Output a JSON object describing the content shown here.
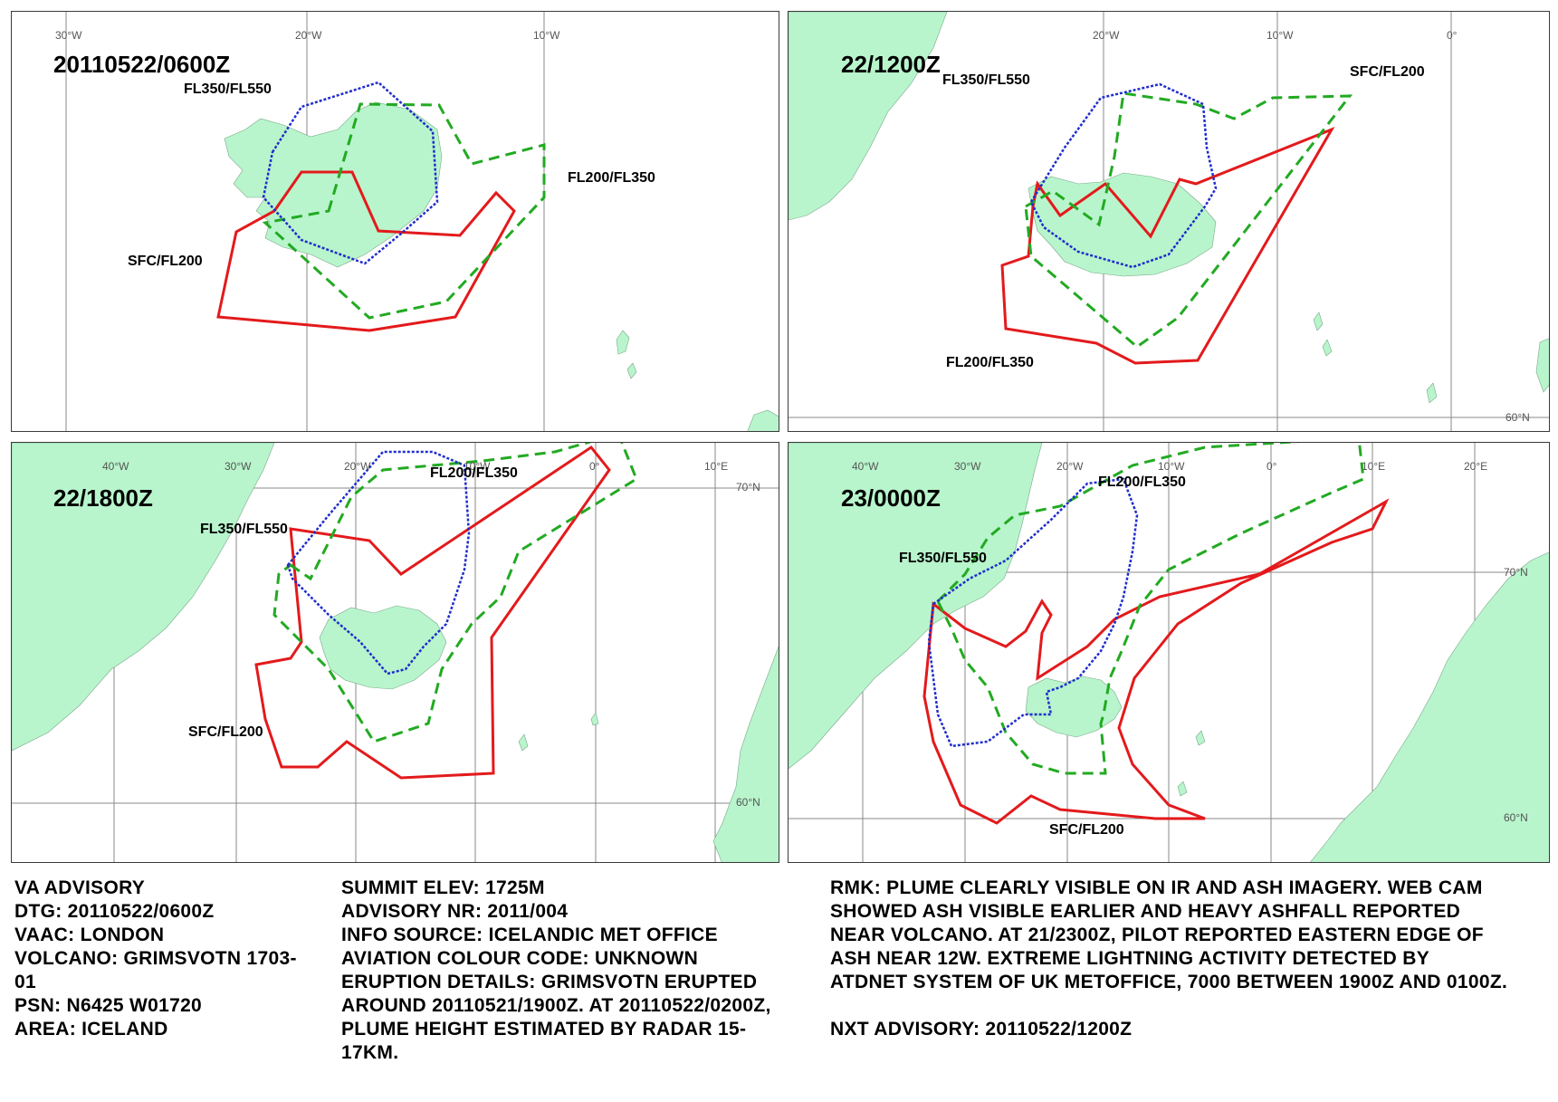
{
  "panels": [
    {
      "time": "20110522/0600Z",
      "ticks": [
        "30°W",
        "20°W",
        "10°W"
      ],
      "labels": {
        "fl350_fl550": "FL350/FL550",
        "fl200_fl350": "FL200/FL350",
        "sfc_fl200": "SFC/FL200"
      }
    },
    {
      "time": "22/1200Z",
      "ticks": [
        "20°W",
        "10°W",
        "0°",
        "60°N"
      ],
      "labels": {
        "fl350_fl550": "FL350/FL550",
        "fl200_fl350": "FL200/FL350",
        "sfc_fl200": "SFC/FL200"
      }
    },
    {
      "time": "22/1800Z",
      "ticks": [
        "40°W",
        "30°W",
        "20°W",
        "10°W",
        "0°",
        "10°E",
        "70°N",
        "60°N"
      ],
      "labels": {
        "fl350_fl550": "FL350/FL550",
        "fl200_fl350": "FL200/FL350",
        "sfc_fl200": "SFC/FL200"
      }
    },
    {
      "time": "23/0000Z",
      "ticks": [
        "40°W",
        "30°W",
        "20°W",
        "10°W",
        "0°",
        "10°E",
        "20°E",
        "70°N",
        "60°N"
      ],
      "labels": {
        "fl350_fl550": "FL350/FL550",
        "fl200_fl350": "FL200/FL350",
        "sfc_fl200": "SFC/FL200"
      }
    }
  ],
  "colors": {
    "sfc_fl200": "#e31a1c",
    "fl200_fl350": "#22aa22",
    "fl350_fl550": "#1f2ecc",
    "land": "#b8f5cc",
    "grid": "#8a8a8a"
  },
  "advisory": {
    "col1": [
      "VA ADVISORY",
      "DTG:  20110522/0600Z",
      "VAAC:  LONDON",
      "VOLCANO:  GRIMSVOTN 1703-",
      "01",
      "PSN:  N6425 W01720",
      "AREA:  ICELAND"
    ],
    "col2": [
      "SUMMIT ELEV:  1725M",
      "ADVISORY NR:  2011/004",
      "INFO SOURCE:  ICELANDIC MET OFFICE",
      "AVIATION COLOUR CODE:  UNKNOWN",
      "ERUPTION DETAILS:  GRIMSVOTN ERUPTED",
      "AROUND 20110521/1900Z. AT 20110522/0200Z,",
      "PLUME HEIGHT ESTIMATED BY RADAR 15-",
      "17KM."
    ],
    "col3": [
      "RMK:  PLUME CLEARLY VISIBLE ON IR AND ASH IMAGERY. WEB CAM",
      "SHOWED ASH VISIBLE EARLIER AND HEAVY ASHFALL REPORTED",
      "NEAR VOLCANO. AT 21/2300Z, PILOT REPORTED EASTERN EDGE OF",
      "ASH NEAR 12W. EXTREME LIGHTNING ACTIVITY DETECTED BY",
      "ATDNET SYSTEM OF UK METOFFICE, 7000 BETWEEN 1900Z AND 0100Z.",
      "",
      "NXT ADVISORY:  20110522/1200Z"
    ]
  }
}
